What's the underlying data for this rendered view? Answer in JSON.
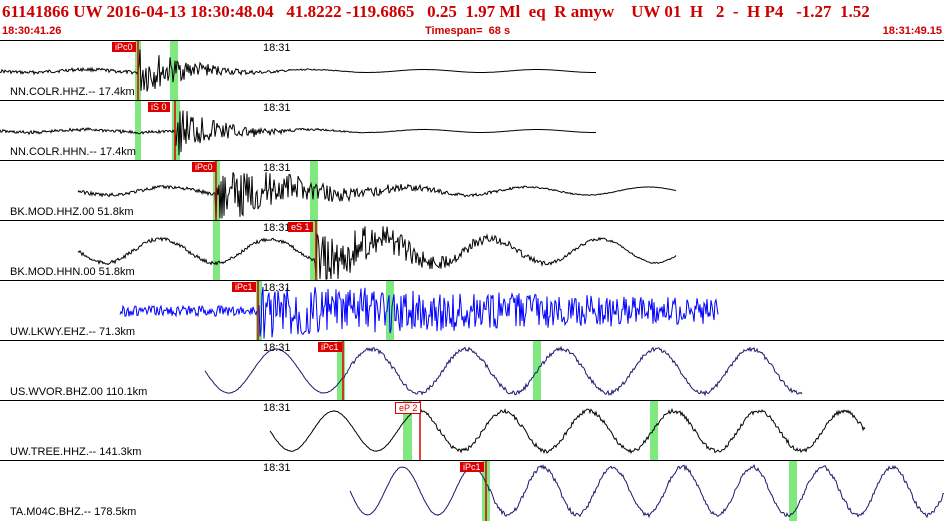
{
  "header": {
    "title": "61141866 UW 2016-04-13 18:30:48.04   41.8222 -119.6865   0.25  1.97 Ml  eq  R amyw    UW 01  H   2  -  H P4   -1.27  1.52",
    "start_time": "18:30:41.26",
    "timespan": "Timespan=  68 s",
    "end_time": "18:31:49.15"
  },
  "colors": {
    "header_text": "#cc0000",
    "pick": "#dd0000",
    "uncertainty": "#7fe87f"
  },
  "traces": [
    {
      "channel": "NN.COLR.HHZ.-- 17.4km",
      "tick": "18:31",
      "pick": "iPc0",
      "color": "#000000"
    },
    {
      "channel": "NN.COLR.HHN.-- 17.4km",
      "tick": "18:31",
      "pick": "iS 0",
      "color": "#000000"
    },
    {
      "channel": "BK.MOD.HHZ.00 51.8km",
      "tick": "18:31",
      "pick": "iPc0",
      "color": "#000000"
    },
    {
      "channel": "BK.MOD.HHN.00 51.8km",
      "tick": "18:31",
      "pick": "eS 1",
      "color": "#000000"
    },
    {
      "channel": "UW.LKWY.EHZ.-- 71.3km",
      "tick": "18:31",
      "pick": "iPc1",
      "color": "#0000ff"
    },
    {
      "channel": "US.WVOR.BHZ.00 110.1km",
      "tick": "18:31",
      "pick": "iPc1",
      "color": "#1a1a6e"
    },
    {
      "channel": "UW.TREE.HHZ.-- 141.3km",
      "tick": "18:31",
      "pick": "eP 2",
      "color": "#000000"
    },
    {
      "channel": "TA.M04C.BHZ.-- 178.5km",
      "tick": "18:31",
      "pick": "iPc1",
      "color": "#1a1a6e"
    }
  ]
}
